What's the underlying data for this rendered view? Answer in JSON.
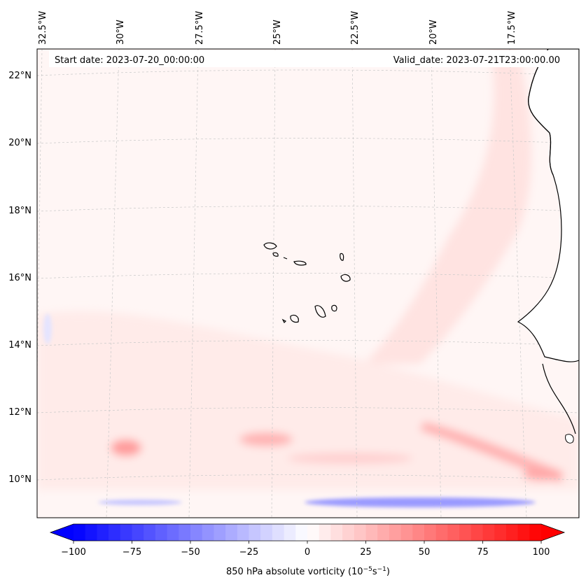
{
  "map": {
    "start_label": "Start date: 2023-07-20_00:00:00",
    "valid_label": "Valid_date: 2023-07-21T23:00:00.00",
    "lon_labels": [
      "32.5°W",
      "30°W",
      "27.5°W",
      "25°W",
      "22.5°W",
      "20°W",
      "17.5°W"
    ],
    "lat_labels": [
      "22°N",
      "20°N",
      "18°N",
      "16°N",
      "14°N",
      "12°N",
      "10°N"
    ],
    "land_color": "#ffffff",
    "coast_color": "#000000",
    "grid_color": "#c8c8c8"
  },
  "colorbar": {
    "title_main": "850 hPa absolute vorticity (10",
    "title_exp1": "−5",
    "title_mid": "s",
    "title_exp2": "−1",
    "title_end": ")",
    "ticks": [
      "−100",
      "−75",
      "−50",
      "−25",
      "0",
      "25",
      "50",
      "75",
      "100"
    ],
    "tick_values": [
      -100,
      -75,
      -50,
      -25,
      0,
      25,
      50,
      75,
      100
    ],
    "min": -100,
    "max": 100,
    "step": 5,
    "low_color": "#0000ff",
    "mid_color": "#ffffff",
    "high_color": "#ff0000"
  }
}
